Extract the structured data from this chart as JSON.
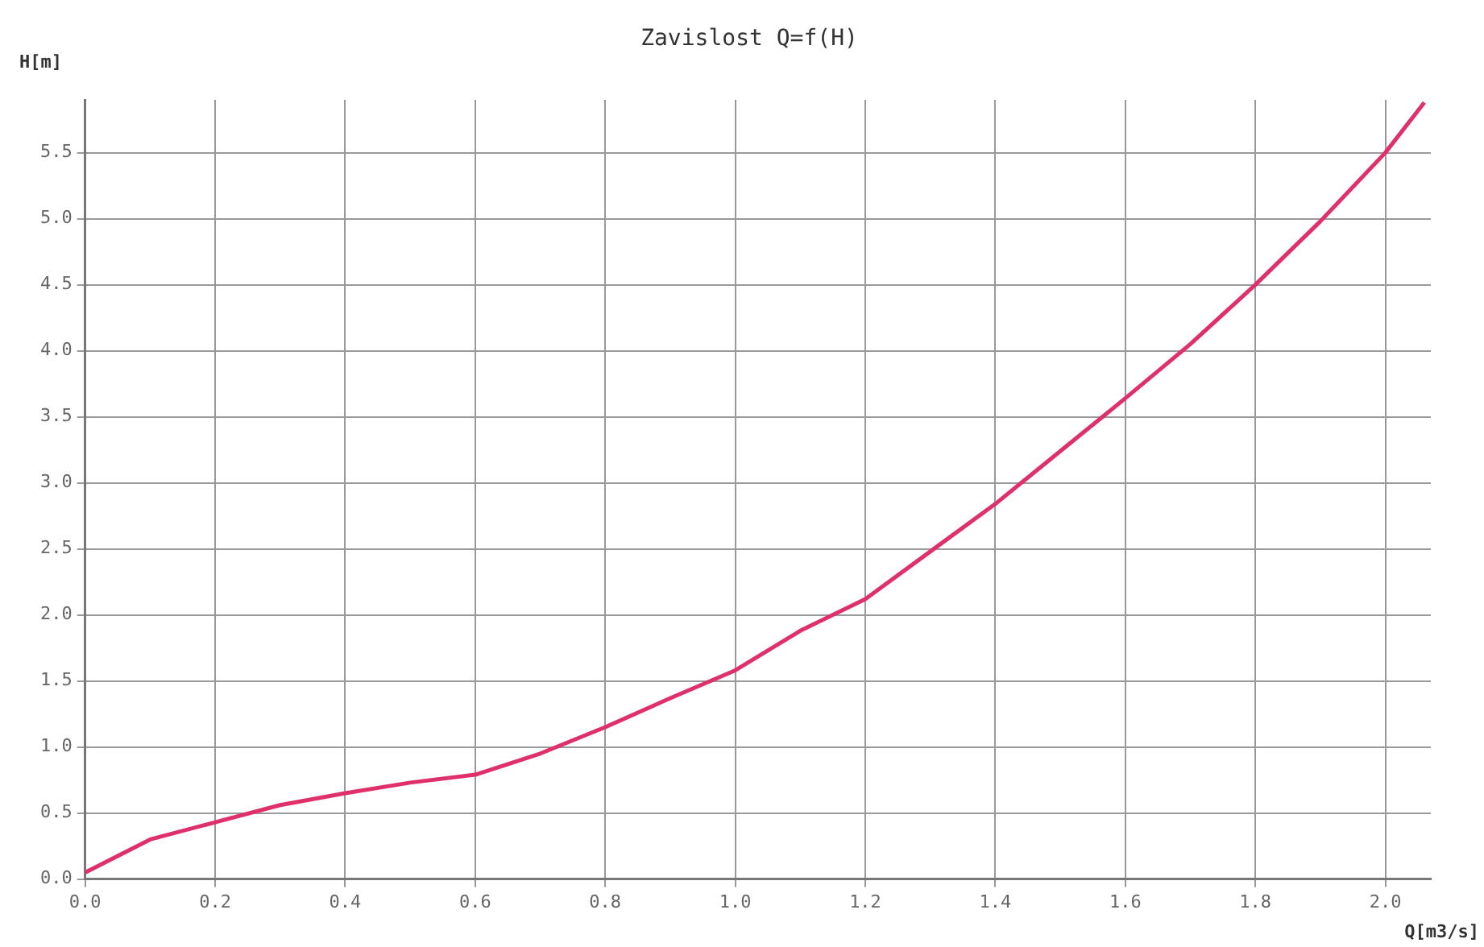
{
  "chart_data": {
    "type": "line",
    "title": "Zavislost Q=f(H)",
    "xlabel": "Q[m3/s]",
    "ylabel": "H[m]",
    "x": [
      0,
      0.1,
      0.2,
      0.3,
      0.4,
      0.5,
      0.6,
      0.7,
      0.8,
      0.9,
      1.0,
      1.1,
      1.2,
      1.3,
      1.4,
      1.5,
      1.6,
      1.7,
      1.8,
      1.9,
      2.0,
      2.06
    ],
    "series": [
      {
        "color": "#e0306a",
        "values": [
          0.05,
          0.3,
          0.43,
          0.56,
          0.65,
          0.73,
          0.79,
          0.95,
          1.15,
          1.37,
          1.58,
          1.88,
          2.12,
          2.48,
          2.84,
          3.24,
          3.64,
          4.05,
          4.5,
          4.98,
          5.5,
          5.88
        ]
      }
    ],
    "xlim": [
      0,
      2.07
    ],
    "ylim": [
      0,
      5.9
    ],
    "xticks": [
      {
        "value": 0,
        "label": "0.0"
      },
      {
        "value": 0.2,
        "label": "0.2"
      },
      {
        "value": 0.4,
        "label": "0.4"
      },
      {
        "value": 0.6,
        "label": "0.6"
      },
      {
        "value": 0.8,
        "label": "0.8"
      },
      {
        "value": 1,
        "label": "1.0"
      },
      {
        "value": 1.2,
        "label": "1.2"
      },
      {
        "value": 1.4,
        "label": "1.4"
      },
      {
        "value": 1.6,
        "label": "1.6"
      },
      {
        "value": 1.8,
        "label": "1.8"
      },
      {
        "value": 2,
        "label": "2.0"
      }
    ],
    "yticks": [
      {
        "value": 0,
        "label": "0.0"
      },
      0.5,
      {
        "value": 1,
        "label": "1.0"
      },
      1.5,
      {
        "value": 2,
        "label": "2.0"
      },
      2.5,
      {
        "value": 3,
        "label": "3.0"
      },
      3.5,
      {
        "value": 4,
        "label": "4.0"
      },
      4.5,
      {
        "value": 5,
        "label": "5.0"
      },
      5.5
    ],
    "grid": true,
    "legend": false,
    "marker": "none",
    "line_style": "solid"
  }
}
